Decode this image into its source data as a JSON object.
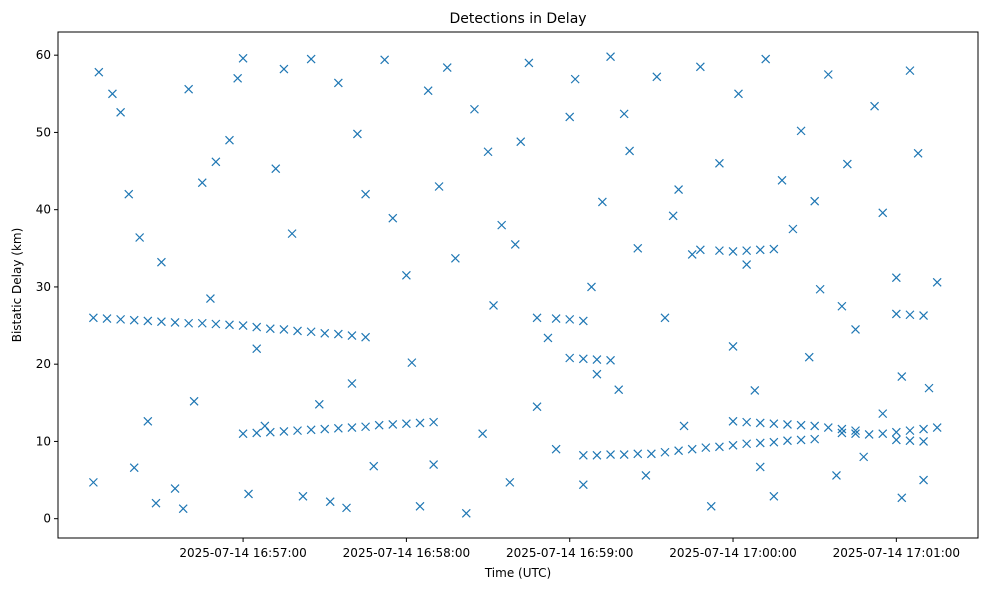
{
  "chart_data": {
    "type": "scatter",
    "title": "Detections in Delay",
    "xlabel": "Time (UTC)",
    "ylabel": "Bistatic Delay (km)",
    "marker": "x",
    "color": "#1f77b4",
    "grid": false,
    "xlim": [
      "2025-07-14 16:55:52",
      "2025-07-14 17:01:30"
    ],
    "ylim": [
      -2.5,
      63
    ],
    "x_ticks": [
      "2025-07-14 16:57:00",
      "2025-07-14 16:58:00",
      "2025-07-14 16:59:00",
      "2025-07-14 17:00:00",
      "2025-07-14 17:01:00"
    ],
    "y_ticks": [
      0,
      10,
      20,
      30,
      40,
      50,
      60
    ],
    "series": [
      {
        "points": [
          [
            "2025-07-14 16:56:05",
            26.0
          ],
          [
            "2025-07-14 16:56:10",
            25.9
          ],
          [
            "2025-07-14 16:56:15",
            25.8
          ],
          [
            "2025-07-14 16:56:20",
            25.7
          ],
          [
            "2025-07-14 16:56:25",
            25.6
          ],
          [
            "2025-07-14 16:56:30",
            25.5
          ],
          [
            "2025-07-14 16:56:35",
            25.4
          ],
          [
            "2025-07-14 16:56:40",
            25.3
          ],
          [
            "2025-07-14 16:56:45",
            25.3
          ],
          [
            "2025-07-14 16:56:50",
            25.2
          ],
          [
            "2025-07-14 16:56:55",
            25.1
          ],
          [
            "2025-07-14 16:57:00",
            25.0
          ],
          [
            "2025-07-14 16:57:05",
            24.8
          ],
          [
            "2025-07-14 16:57:10",
            24.6
          ],
          [
            "2025-07-14 16:57:15",
            24.5
          ],
          [
            "2025-07-14 16:57:20",
            24.3
          ],
          [
            "2025-07-14 16:57:25",
            24.2
          ],
          [
            "2025-07-14 16:57:30",
            24.0
          ],
          [
            "2025-07-14 16:57:35",
            23.9
          ],
          [
            "2025-07-14 16:57:40",
            23.7
          ],
          [
            "2025-07-14 16:57:45",
            23.5
          ],
          [
            "2025-07-14 16:57:00",
            11.0
          ],
          [
            "2025-07-14 16:57:05",
            11.1
          ],
          [
            "2025-07-14 16:57:10",
            11.2
          ],
          [
            "2025-07-14 16:57:15",
            11.3
          ],
          [
            "2025-07-14 16:57:20",
            11.4
          ],
          [
            "2025-07-14 16:57:25",
            11.5
          ],
          [
            "2025-07-14 16:57:30",
            11.6
          ],
          [
            "2025-07-14 16:57:35",
            11.7
          ],
          [
            "2025-07-14 16:57:40",
            11.8
          ],
          [
            "2025-07-14 16:57:45",
            11.9
          ],
          [
            "2025-07-14 16:57:50",
            12.1
          ],
          [
            "2025-07-14 16:57:55",
            12.2
          ],
          [
            "2025-07-14 16:58:00",
            12.3
          ],
          [
            "2025-07-14 16:58:05",
            12.4
          ],
          [
            "2025-07-14 16:58:10",
            12.5
          ],
          [
            "2025-07-14 16:58:48",
            26.0
          ],
          [
            "2025-07-14 16:58:55",
            25.9
          ],
          [
            "2025-07-14 16:59:00",
            25.8
          ],
          [
            "2025-07-14 16:59:05",
            25.6
          ],
          [
            "2025-07-14 16:59:00",
            20.8
          ],
          [
            "2025-07-14 16:59:05",
            20.7
          ],
          [
            "2025-07-14 16:59:10",
            20.6
          ],
          [
            "2025-07-14 16:59:15",
            20.5
          ],
          [
            "2025-07-14 16:59:05",
            8.2
          ],
          [
            "2025-07-14 16:59:10",
            8.2
          ],
          [
            "2025-07-14 16:59:15",
            8.3
          ],
          [
            "2025-07-14 16:59:20",
            8.3
          ],
          [
            "2025-07-14 16:59:25",
            8.4
          ],
          [
            "2025-07-14 16:59:30",
            8.4
          ],
          [
            "2025-07-14 16:59:35",
            8.6
          ],
          [
            "2025-07-14 16:59:40",
            8.8
          ],
          [
            "2025-07-14 16:59:45",
            9.0
          ],
          [
            "2025-07-14 16:59:50",
            9.2
          ],
          [
            "2025-07-14 16:59:55",
            9.3
          ],
          [
            "2025-07-14 17:00:00",
            9.5
          ],
          [
            "2025-07-14 17:00:05",
            9.7
          ],
          [
            "2025-07-14 17:00:10",
            9.8
          ],
          [
            "2025-07-14 17:00:15",
            9.9
          ],
          [
            "2025-07-14 17:00:20",
            10.1
          ],
          [
            "2025-07-14 17:00:25",
            10.2
          ],
          [
            "2025-07-14 17:00:30",
            10.3
          ],
          [
            "2025-07-14 16:59:48",
            34.8
          ],
          [
            "2025-07-14 16:59:55",
            34.7
          ],
          [
            "2025-07-14 17:00:00",
            34.6
          ],
          [
            "2025-07-14 17:00:05",
            34.7
          ],
          [
            "2025-07-14 17:00:10",
            34.8
          ],
          [
            "2025-07-14 17:00:15",
            34.9
          ],
          [
            "2025-07-14 17:00:00",
            12.6
          ],
          [
            "2025-07-14 17:00:05",
            12.5
          ],
          [
            "2025-07-14 17:00:10",
            12.4
          ],
          [
            "2025-07-14 17:00:15",
            12.3
          ],
          [
            "2025-07-14 17:00:20",
            12.2
          ],
          [
            "2025-07-14 17:00:25",
            12.1
          ],
          [
            "2025-07-14 17:00:30",
            12.0
          ],
          [
            "2025-07-14 17:00:35",
            11.8
          ],
          [
            "2025-07-14 17:00:40",
            11.6
          ],
          [
            "2025-07-14 17:00:45",
            11.4
          ],
          [
            "2025-07-14 17:00:40",
            11.1
          ],
          [
            "2025-07-14 17:00:45",
            11.0
          ],
          [
            "2025-07-14 17:00:50",
            10.9
          ],
          [
            "2025-07-14 17:00:55",
            11.0
          ],
          [
            "2025-07-14 17:01:00",
            11.2
          ],
          [
            "2025-07-14 17:01:05",
            11.4
          ],
          [
            "2025-07-14 17:01:10",
            11.6
          ],
          [
            "2025-07-14 17:01:15",
            11.8
          ],
          [
            "2025-07-14 17:01:00",
            10.2
          ],
          [
            "2025-07-14 17:01:05",
            10.1
          ],
          [
            "2025-07-14 17:01:10",
            10.0
          ],
          [
            "2025-07-14 17:01:00",
            26.5
          ],
          [
            "2025-07-14 17:01:05",
            26.4
          ],
          [
            "2025-07-14 17:01:10",
            26.3
          ],
          [
            "2025-07-14 16:56:05",
            4.7
          ],
          [
            "2025-07-14 16:56:07",
            57.8
          ],
          [
            "2025-07-14 16:56:12",
            55.0
          ],
          [
            "2025-07-14 16:56:15",
            52.6
          ],
          [
            "2025-07-14 16:56:18",
            42.0
          ],
          [
            "2025-07-14 16:56:22",
            36.4
          ],
          [
            "2025-07-14 16:56:25",
            12.6
          ],
          [
            "2025-07-14 16:56:20",
            6.6
          ],
          [
            "2025-07-14 16:56:28",
            2.0
          ],
          [
            "2025-07-14 16:56:35",
            3.9
          ],
          [
            "2025-07-14 16:56:38",
            1.3
          ],
          [
            "2025-07-14 16:56:42",
            15.2
          ],
          [
            "2025-07-14 16:56:45",
            43.5
          ],
          [
            "2025-07-14 16:56:50",
            46.2
          ],
          [
            "2025-07-14 16:56:55",
            49.0
          ],
          [
            "2025-07-14 16:57:00",
            59.6
          ],
          [
            "2025-07-14 16:56:58",
            57.0
          ],
          [
            "2025-07-14 16:57:02",
            3.2
          ],
          [
            "2025-07-14 16:57:08",
            12.0
          ],
          [
            "2025-07-14 16:57:12",
            45.3
          ],
          [
            "2025-07-14 16:57:15",
            58.2
          ],
          [
            "2025-07-14 16:57:18",
            36.9
          ],
          [
            "2025-07-14 16:57:22",
            2.9
          ],
          [
            "2025-07-14 16:57:25",
            59.5
          ],
          [
            "2025-07-14 16:57:28",
            14.8
          ],
          [
            "2025-07-14 16:57:32",
            2.2
          ],
          [
            "2025-07-14 16:57:35",
            56.4
          ],
          [
            "2025-07-14 16:57:38",
            1.4
          ],
          [
            "2025-07-14 16:57:42",
            49.8
          ],
          [
            "2025-07-14 16:57:45",
            42.0
          ],
          [
            "2025-07-14 16:57:48",
            6.8
          ],
          [
            "2025-07-14 16:57:52",
            59.4
          ],
          [
            "2025-07-14 16:57:55",
            38.9
          ],
          [
            "2025-07-14 16:58:00",
            31.5
          ],
          [
            "2025-07-14 16:58:02",
            20.2
          ],
          [
            "2025-07-14 16:58:05",
            1.6
          ],
          [
            "2025-07-14 16:58:08",
            55.4
          ],
          [
            "2025-07-14 16:58:12",
            43.0
          ],
          [
            "2025-07-14 16:58:15",
            58.4
          ],
          [
            "2025-07-14 16:58:18",
            33.7
          ],
          [
            "2025-07-14 16:58:22",
            0.7
          ],
          [
            "2025-07-14 16:58:25",
            53.0
          ],
          [
            "2025-07-14 16:58:28",
            11.0
          ],
          [
            "2025-07-14 16:58:32",
            27.6
          ],
          [
            "2025-07-14 16:58:35",
            38.0
          ],
          [
            "2025-07-14 16:58:38",
            4.7
          ],
          [
            "2025-07-14 16:58:42",
            48.8
          ],
          [
            "2025-07-14 16:58:45",
            59.0
          ],
          [
            "2025-07-14 16:58:48",
            14.5
          ],
          [
            "2025-07-14 16:58:52",
            23.4
          ],
          [
            "2025-07-14 16:58:55",
            9.0
          ],
          [
            "2025-07-14 16:59:00",
            52.0
          ],
          [
            "2025-07-14 16:59:02",
            56.9
          ],
          [
            "2025-07-14 16:59:05",
            4.4
          ],
          [
            "2025-07-14 16:59:08",
            30.0
          ],
          [
            "2025-07-14 16:59:12",
            41.0
          ],
          [
            "2025-07-14 16:59:15",
            59.8
          ],
          [
            "2025-07-14 16:59:18",
            16.7
          ],
          [
            "2025-07-14 16:59:22",
            47.6
          ],
          [
            "2025-07-14 16:59:25",
            35.0
          ],
          [
            "2025-07-14 16:59:28",
            5.6
          ],
          [
            "2025-07-14 16:59:32",
            57.2
          ],
          [
            "2025-07-14 16:59:35",
            26.0
          ],
          [
            "2025-07-14 16:59:38",
            39.2
          ],
          [
            "2025-07-14 16:59:42",
            12.0
          ],
          [
            "2025-07-14 16:59:45",
            34.2
          ],
          [
            "2025-07-14 16:59:48",
            58.5
          ],
          [
            "2025-07-14 16:59:52",
            1.6
          ],
          [
            "2025-07-14 16:59:55",
            46.0
          ],
          [
            "2025-07-14 17:00:00",
            22.3
          ],
          [
            "2025-07-14 17:00:02",
            55.0
          ],
          [
            "2025-07-14 17:00:05",
            32.9
          ],
          [
            "2025-07-14 17:00:08",
            16.6
          ],
          [
            "2025-07-14 17:00:12",
            59.5
          ],
          [
            "2025-07-14 17:00:15",
            2.9
          ],
          [
            "2025-07-14 17:00:18",
            43.8
          ],
          [
            "2025-07-14 17:00:22",
            37.5
          ],
          [
            "2025-07-14 17:00:25",
            50.2
          ],
          [
            "2025-07-14 17:00:28",
            20.9
          ],
          [
            "2025-07-14 17:00:32",
            29.7
          ],
          [
            "2025-07-14 17:00:35",
            57.5
          ],
          [
            "2025-07-14 17:00:38",
            5.6
          ],
          [
            "2025-07-14 17:00:42",
            45.9
          ],
          [
            "2025-07-14 17:00:45",
            24.5
          ],
          [
            "2025-07-14 17:00:48",
            8.0
          ],
          [
            "2025-07-14 17:00:52",
            53.4
          ],
          [
            "2025-07-14 17:00:55",
            39.6
          ],
          [
            "2025-07-14 17:01:00",
            31.2
          ],
          [
            "2025-07-14 17:01:02",
            18.4
          ],
          [
            "2025-07-14 17:01:05",
            58.0
          ],
          [
            "2025-07-14 17:01:08",
            47.3
          ],
          [
            "2025-07-14 17:01:10",
            5.0
          ],
          [
            "2025-07-14 17:01:12",
            16.9
          ],
          [
            "2025-07-14 17:01:15",
            30.6
          ],
          [
            "2025-07-14 17:01:02",
            2.7
          ],
          [
            "2025-07-14 16:56:30",
            33.2
          ],
          [
            "2025-07-14 16:56:48",
            28.5
          ],
          [
            "2025-07-14 16:57:05",
            22.0
          ],
          [
            "2025-07-14 16:57:40",
            17.5
          ],
          [
            "2025-07-14 16:58:10",
            7.0
          ],
          [
            "2025-07-14 16:58:40",
            35.5
          ],
          [
            "2025-07-14 16:59:10",
            18.7
          ],
          [
            "2025-07-14 16:59:40",
            42.6
          ],
          [
            "2025-07-14 17:00:10",
            6.7
          ],
          [
            "2025-07-14 17:00:40",
            27.5
          ],
          [
            "2025-07-14 17:00:55",
            13.6
          ],
          [
            "2025-07-14 16:56:40",
            55.6
          ],
          [
            "2025-07-14 16:58:30",
            47.5
          ],
          [
            "2025-07-14 16:59:20",
            52.4
          ],
          [
            "2025-07-14 17:00:30",
            41.1
          ]
        ]
      }
    ]
  }
}
